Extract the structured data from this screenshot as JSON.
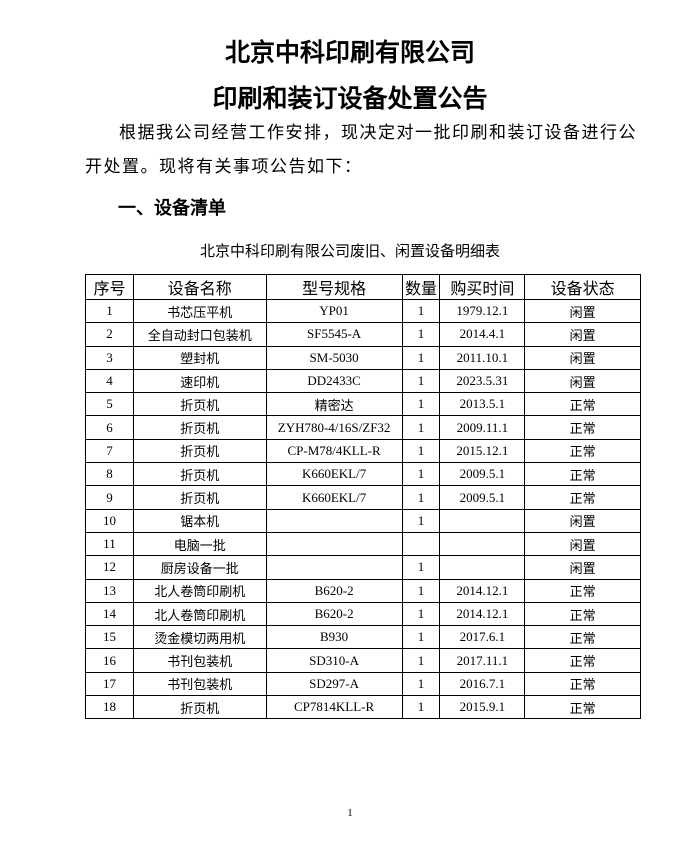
{
  "title_line1": "北京中科印刷有限公司",
  "title_line2": "印刷和装订设备处置公告",
  "intro": "根据我公司经营工作安排，现决定对一批印刷和装订设备进行公开处置。现将有关事项公告如下：",
  "section1_heading": "一、设备清单",
  "table_caption": "北京中科印刷有限公司废旧、闲置设备明细表",
  "table": {
    "headers": [
      "序号",
      "设备名称",
      "型号规格",
      "数量",
      "购买时间",
      "设备状态"
    ],
    "rows": [
      [
        "1",
        "书芯压平机",
        "YP01",
        "1",
        "1979.12.1",
        "闲置"
      ],
      [
        "2",
        "全自动封口包装机",
        "SF5545-A",
        "1",
        "2014.4.1",
        "闲置"
      ],
      [
        "3",
        "塑封机",
        "SM-5030",
        "1",
        "2011.10.1",
        "闲置"
      ],
      [
        "4",
        "速印机",
        "DD2433C",
        "1",
        "2023.5.31",
        "闲置"
      ],
      [
        "5",
        "折页机",
        "精密达",
        "1",
        "2013.5.1",
        "正常"
      ],
      [
        "6",
        "折页机",
        "ZYH780-4/16S/ZF32",
        "1",
        "2009.11.1",
        "正常"
      ],
      [
        "7",
        "折页机",
        "CP-M78/4KLL-R",
        "1",
        "2015.12.1",
        "正常"
      ],
      [
        "8",
        "折页机",
        "K660EKL/7",
        "1",
        "2009.5.1",
        "正常"
      ],
      [
        "9",
        "折页机",
        "K660EKL/7",
        "1",
        "2009.5.1",
        "正常"
      ],
      [
        "10",
        "锯本机",
        "",
        "1",
        "",
        "闲置"
      ],
      [
        "11",
        "电脑一批",
        "",
        "",
        "",
        "闲置"
      ],
      [
        "12",
        "厨房设备一批",
        "",
        "1",
        "",
        "闲置"
      ],
      [
        "13",
        "北人卷筒印刷机",
        "B620-2",
        "1",
        "2014.12.1",
        "正常"
      ],
      [
        "14",
        "北人卷筒印刷机",
        "B620-2",
        "1",
        "2014.12.1",
        "正常"
      ],
      [
        "15",
        "烫金模切两用机",
        "B930",
        "1",
        "2017.6.1",
        "正常"
      ],
      [
        "16",
        "书刊包装机",
        "SD310-A",
        "1",
        "2017.11.1",
        "正常"
      ],
      [
        "17",
        "书刊包装机",
        "SD297-A",
        "1",
        "2016.7.1",
        "正常"
      ],
      [
        "18",
        "折页机",
        "CP7814KLL-R",
        "1",
        "2015.9.1",
        "正常"
      ]
    ]
  },
  "page_number": "1"
}
